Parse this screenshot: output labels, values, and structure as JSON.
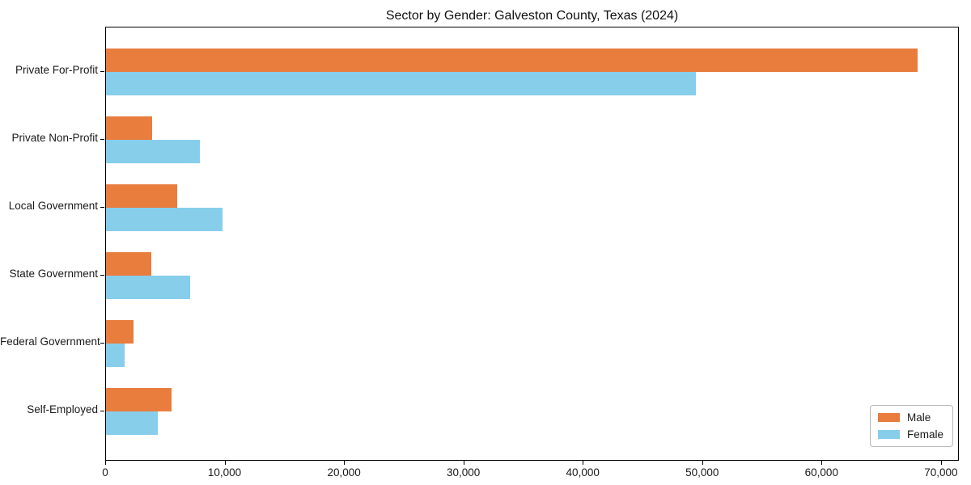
{
  "title": "Sector by Gender: Galveston County, Texas (2024)",
  "chart_data": {
    "type": "bar",
    "orientation": "horizontal",
    "title": "Sector by Gender: Galveston County, Texas (2024)",
    "categories": [
      "Private For-Profit",
      "Private Non-Profit",
      "Local Government",
      "State Government",
      "Federal Government",
      "Self-Employed"
    ],
    "series": [
      {
        "name": "Male",
        "color": "#E87D3E",
        "values": [
          68100,
          3900,
          6000,
          3800,
          2300,
          5500
        ]
      },
      {
        "name": "Female",
        "color": "#87CEEB",
        "values": [
          49500,
          7850,
          9800,
          7050,
          1550,
          4350
        ]
      }
    ],
    "xlabel": "",
    "ylabel": "",
    "xlim": [
      0,
      71500
    ],
    "x_ticks": [
      0,
      10000,
      20000,
      30000,
      40000,
      50000,
      60000,
      70000
    ],
    "x_tick_labels": [
      "0",
      "10,000",
      "20,000",
      "30,000",
      "40,000",
      "50,000",
      "60,000",
      "70,000"
    ],
    "grid": false,
    "legend": {
      "position": "lower right",
      "entries": [
        "Male",
        "Female"
      ]
    }
  }
}
